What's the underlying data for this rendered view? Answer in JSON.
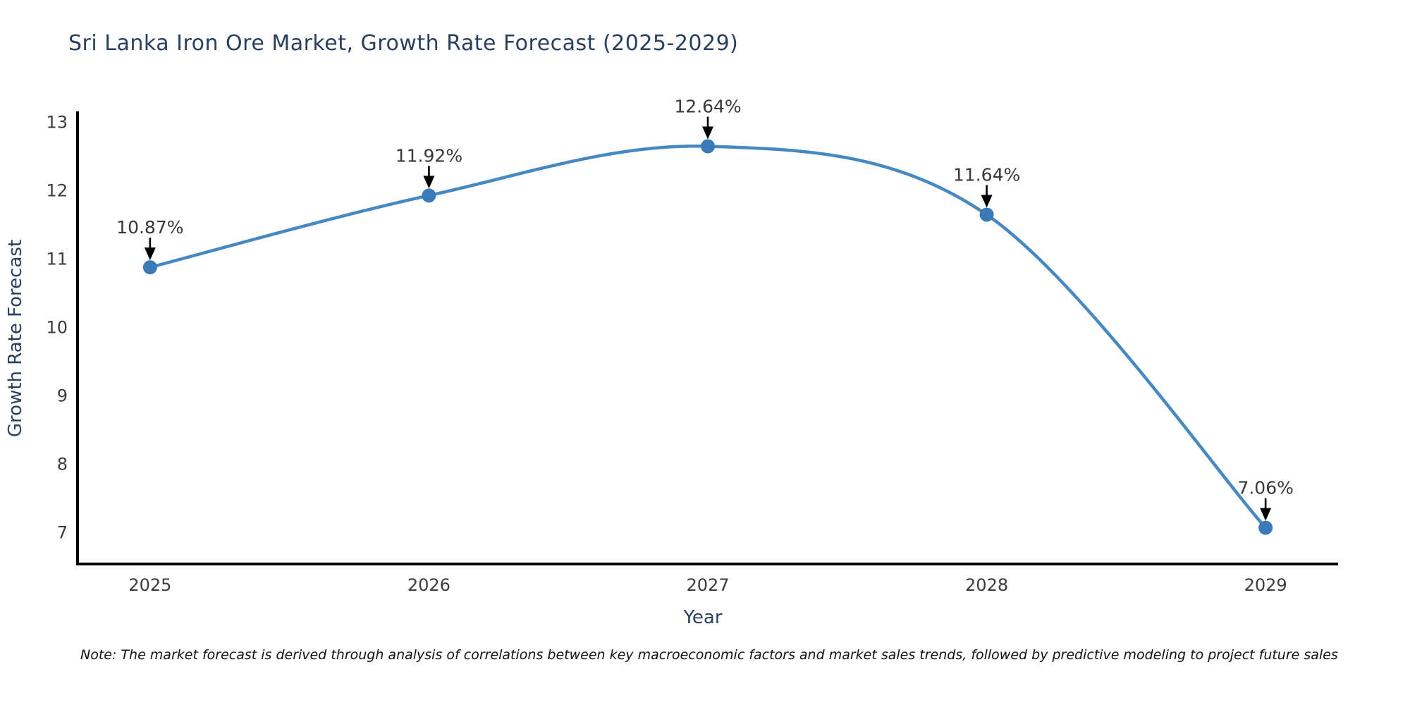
{
  "title": "Sri Lanka Iron Ore Market, Growth Rate Forecast (2025-2029)",
  "footnote": "Note: The market forecast is derived through analysis of correlations between key macroeconomic factors and market sales trends, followed by predictive modeling to project future sales",
  "colors": {
    "line": "#4688C2",
    "marker": "#3A7AB8",
    "axis_line": "#000000",
    "title_text": "#2a3f5f",
    "tick_text": "#3c3c3c",
    "annotation_text": "#383838",
    "arrow": "#000000",
    "background": "#ffffff"
  },
  "chart_data": {
    "type": "line",
    "line_shape": "spline",
    "title": "Sri Lanka Iron Ore Market, Growth Rate Forecast (2025-2029)",
    "xlabel": "Year",
    "ylabel": "Growth Rate Forecast",
    "x": [
      2025,
      2026,
      2027,
      2028,
      2029
    ],
    "values": [
      10.87,
      11.92,
      12.64,
      11.64,
      7.06
    ],
    "point_labels": [
      "10.87%",
      "11.92%",
      "12.64%",
      "11.64%",
      "7.06%"
    ],
    "yticks": [
      7,
      8,
      9,
      10,
      11,
      12,
      13
    ],
    "xticks": [
      "2025",
      "2026",
      "2027",
      "2028",
      "2029"
    ],
    "ylim": [
      6.53,
      13.13
    ],
    "xlim": [
      2024.74,
      2029.26
    ],
    "grid": false,
    "legend": false,
    "annotations_have_arrows": true
  }
}
